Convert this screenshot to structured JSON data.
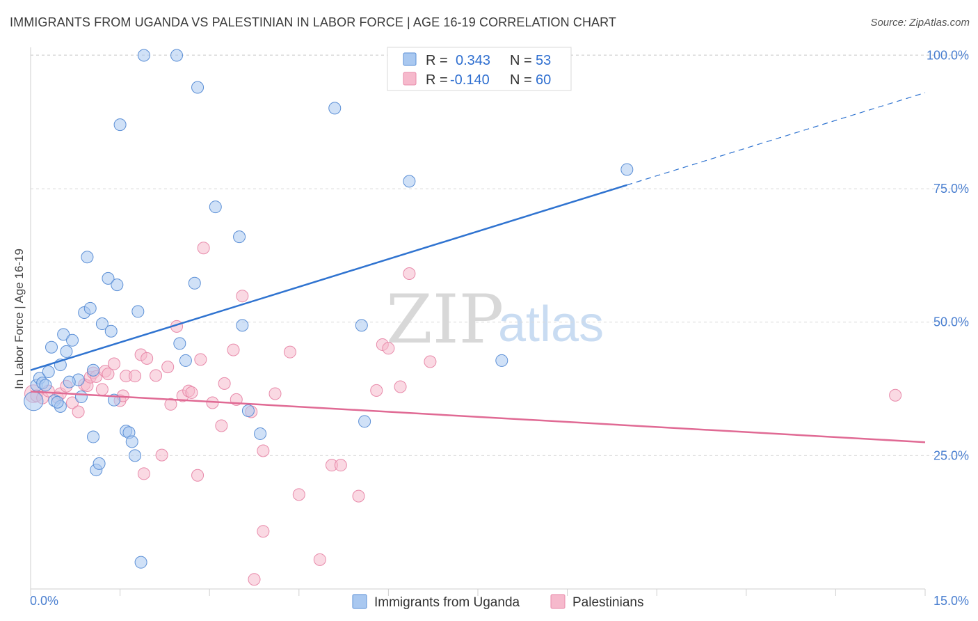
{
  "header": {
    "title": "IMMIGRANTS FROM UGANDA VS PALESTINIAN IN LABOR FORCE | AGE 16-19 CORRELATION CHART",
    "source": "Source: ZipAtlas.com"
  },
  "watermark": {
    "zip": "ZIP",
    "atlas": "atlas"
  },
  "stats": [
    {
      "r_label": "R =",
      "r_value": "0.343",
      "n_label": "N =",
      "n_value": "53"
    },
    {
      "r_label": "R =",
      "r_value": "-0.140",
      "n_label": "N =",
      "n_value": "60"
    }
  ],
  "colors": {
    "uganda_fill": "#a9c8f0",
    "uganda_stroke": "#5b8fd6",
    "uganda_line": "#2f73d0",
    "pal_fill": "#f6b9cc",
    "pal_stroke": "#e88aaa",
    "pal_line": "#e06a94",
    "grid": "#d9d9d9",
    "tick_text": "#4a7fd0",
    "stat_value": "#2f6fd0"
  },
  "chart_data": {
    "type": "scatter",
    "title": "IMMIGRANTS FROM UGANDA VS PALESTINIAN IN LABOR FORCE | AGE 16-19 CORRELATION CHART",
    "xlabel": "",
    "ylabel": "In Labor Force | Age 16-19",
    "xlim": [
      0,
      15
    ],
    "ylim": [
      0,
      101.5
    ],
    "x_tick_labels": [
      "0.0%",
      "15.0%"
    ],
    "y_ticks": [
      25,
      50,
      75,
      100
    ],
    "y_tick_labels": [
      "25.0%",
      "50.0%",
      "75.0%",
      "100.0%"
    ],
    "legend": [
      "Immigrants from Uganda",
      "Palestinians"
    ],
    "series": [
      {
        "name": "Immigrants from Uganda",
        "color": "#a9c8f0",
        "trend": {
          "x0": 0,
          "y0": 41,
          "x1": 10.0,
          "y1": 75.7,
          "dashed_to_x": 15,
          "dashed_to_y": 93
        },
        "points": [
          [
            0.05,
            35.2,
            1.6
          ],
          [
            0.1,
            38.2,
            1
          ],
          [
            0.15,
            39.5,
            1
          ],
          [
            0.2,
            38.6,
            1
          ],
          [
            0.25,
            38.2,
            1
          ],
          [
            0.3,
            40.7,
            1
          ],
          [
            0.35,
            45.3,
            1
          ],
          [
            0.4,
            35.3,
            1
          ],
          [
            0.5,
            42.0,
            1
          ],
          [
            0.5,
            34.2,
            1
          ],
          [
            0.55,
            47.7,
            1
          ],
          [
            0.6,
            44.5,
            1
          ],
          [
            0.7,
            46.6,
            1
          ],
          [
            0.8,
            39.2,
            1
          ],
          [
            0.85,
            36.0,
            1
          ],
          [
            0.9,
            51.8,
            1
          ],
          [
            0.95,
            62.2,
            1
          ],
          [
            1.05,
            41.0,
            1
          ],
          [
            1.05,
            28.5,
            1
          ],
          [
            1.0,
            52.6,
            1
          ],
          [
            1.1,
            22.3,
            1
          ],
          [
            1.15,
            23.5,
            1
          ],
          [
            1.2,
            49.7,
            1
          ],
          [
            1.3,
            58.2,
            1
          ],
          [
            1.35,
            48.3,
            1
          ],
          [
            1.4,
            35.4,
            1
          ],
          [
            1.45,
            57.0,
            1
          ],
          [
            1.5,
            87.0,
            1
          ],
          [
            1.6,
            29.6,
            1
          ],
          [
            1.65,
            29.3,
            1
          ],
          [
            1.7,
            27.6,
            1
          ],
          [
            1.75,
            25.0,
            1
          ],
          [
            1.8,
            52.0,
            1
          ],
          [
            1.85,
            5.0,
            1
          ],
          [
            1.9,
            100.0,
            1
          ],
          [
            2.45,
            100.0,
            1
          ],
          [
            2.5,
            46.0,
            1
          ],
          [
            2.6,
            42.8,
            1
          ],
          [
            2.8,
            94.0,
            1
          ],
          [
            2.75,
            57.3,
            1
          ],
          [
            3.1,
            71.6,
            1
          ],
          [
            3.5,
            66.0,
            1
          ],
          [
            3.55,
            49.4,
            1
          ],
          [
            3.65,
            33.4,
            1
          ],
          [
            3.85,
            29.1,
            1
          ],
          [
            5.1,
            90.1,
            1
          ],
          [
            5.55,
            49.4,
            1
          ],
          [
            5.6,
            31.4,
            1
          ],
          [
            6.35,
            76.4,
            1
          ],
          [
            7.9,
            42.8,
            1
          ],
          [
            10.0,
            78.6,
            1
          ],
          [
            0.45,
            35.0,
            1
          ],
          [
            0.65,
            38.8,
            1
          ]
        ]
      },
      {
        "name": "Palestinians",
        "color": "#f6b9cc",
        "trend": {
          "x0": 0,
          "y0": 37.0,
          "x1": 15,
          "y1": 27.5
        },
        "points": [
          [
            0.05,
            36.6,
            1.5
          ],
          [
            0.1,
            36.2,
            1
          ],
          [
            0.2,
            35.8,
            1
          ],
          [
            0.3,
            37.1,
            1
          ],
          [
            0.45,
            35.9,
            1
          ],
          [
            0.5,
            36.6,
            1
          ],
          [
            0.6,
            38.0,
            1
          ],
          [
            0.7,
            34.9,
            1
          ],
          [
            0.8,
            33.2,
            1
          ],
          [
            0.9,
            38.3,
            1
          ],
          [
            0.95,
            38.1,
            1
          ],
          [
            1.0,
            39.7,
            1
          ],
          [
            1.05,
            40.5,
            1
          ],
          [
            1.1,
            39.8,
            1
          ],
          [
            1.2,
            37.4,
            1
          ],
          [
            1.25,
            40.8,
            1
          ],
          [
            1.3,
            40.3,
            1
          ],
          [
            1.4,
            42.2,
            1
          ],
          [
            1.5,
            35.3,
            1
          ],
          [
            1.55,
            36.2,
            1
          ],
          [
            1.6,
            39.9,
            1
          ],
          [
            1.75,
            39.9,
            1
          ],
          [
            1.85,
            43.9,
            1
          ],
          [
            1.9,
            21.6,
            1
          ],
          [
            1.95,
            43.2,
            1
          ],
          [
            2.1,
            40.0,
            1
          ],
          [
            2.2,
            25.1,
            1
          ],
          [
            2.3,
            41.6,
            1
          ],
          [
            2.35,
            34.6,
            1
          ],
          [
            2.45,
            49.2,
            1
          ],
          [
            2.55,
            36.2,
            1
          ],
          [
            2.65,
            37.1,
            1
          ],
          [
            2.7,
            36.8,
            1
          ],
          [
            2.8,
            21.3,
            1
          ],
          [
            2.85,
            43.0,
            1
          ],
          [
            2.9,
            63.9,
            1
          ],
          [
            3.05,
            34.9,
            1
          ],
          [
            3.2,
            30.6,
            1
          ],
          [
            3.25,
            38.5,
            1
          ],
          [
            3.4,
            44.8,
            1
          ],
          [
            3.45,
            35.5,
            1
          ],
          [
            3.55,
            54.9,
            1
          ],
          [
            3.7,
            33.2,
            1
          ],
          [
            3.75,
            1.8,
            1
          ],
          [
            3.9,
            10.8,
            1
          ],
          [
            3.9,
            25.9,
            1
          ],
          [
            4.1,
            36.6,
            1
          ],
          [
            4.35,
            44.4,
            1
          ],
          [
            4.5,
            17.7,
            1
          ],
          [
            4.85,
            5.5,
            1
          ],
          [
            5.05,
            23.2,
            1
          ],
          [
            5.2,
            23.2,
            1
          ],
          [
            5.5,
            17.4,
            1
          ],
          [
            5.8,
            37.2,
            1
          ],
          [
            5.9,
            45.8,
            1
          ],
          [
            6.0,
            45.1,
            1
          ],
          [
            6.2,
            37.9,
            1
          ],
          [
            6.35,
            59.1,
            1
          ],
          [
            6.7,
            42.6,
            1
          ],
          [
            14.5,
            36.3,
            1
          ]
        ]
      }
    ]
  },
  "legend": {
    "uganda_label": "Immigrants from Uganda",
    "pal_label": "Palestinians"
  }
}
